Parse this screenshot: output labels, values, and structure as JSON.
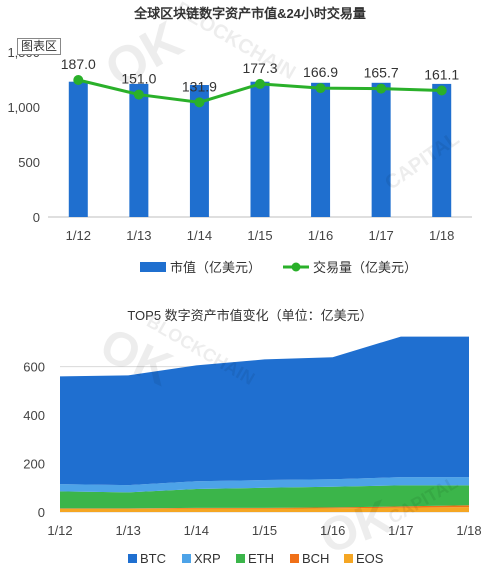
{
  "chart1": {
    "title": "全球区块链数字资产市值&24小时交易量",
    "tag": "图表区",
    "legend": {
      "bar": "市值（亿美元）",
      "line": "交易量（亿美元）"
    },
    "colors": {
      "bar": "#1f6fcf",
      "line": "#2ab02a"
    }
  },
  "chart2": {
    "title": "TOP5 数字资产市值变化（单位：亿美元）",
    "legend": [
      "BTC",
      "XRP",
      "ETH",
      "BCH",
      "EOS"
    ],
    "colors": [
      "#1f6fd0",
      "#4da3e8",
      "#3bb54a",
      "#f07018",
      "#f5a623"
    ]
  },
  "watermark": {
    "ok": "OK",
    "text1": "BLOCKCHAIN",
    "text2": "CAPITAL"
  },
  "chart_data": [
    {
      "type": "bar",
      "title": "全球区块链数字资产市值&24小时交易量",
      "categories": [
        "1/12",
        "1/13",
        "1/14",
        "1/15",
        "1/16",
        "1/17",
        "1/18"
      ],
      "series": [
        {
          "name": "市值（亿美元）",
          "kind": "bar",
          "values": [
            1230,
            1210,
            1200,
            1230,
            1220,
            1220,
            1210
          ]
        },
        {
          "name": "交易量（亿美元）",
          "kind": "line",
          "values": [
            187.0,
            151.0,
            131.9,
            177.3,
            166.9,
            165.7,
            161.1
          ]
        }
      ],
      "yticks": [
        "0",
        "500",
        "1,000",
        "1,500"
      ],
      "ylim": [
        0,
        1500
      ],
      "line_labels": [
        "187.0",
        "151.0",
        "131.9",
        "177.3",
        "166.9",
        "165.7",
        "161.1"
      ],
      "legend_position": "bottom"
    },
    {
      "type": "area",
      "stacked": true,
      "title": "TOP5 数字资产市值变化（单位：亿美元）",
      "categories": [
        "1/12",
        "1/13",
        "1/14",
        "1/15",
        "1/16",
        "1/17",
        "1/18"
      ],
      "series": [
        {
          "name": "EOS",
          "values": [
            13,
            13,
            14,
            14,
            15,
            18,
            20
          ]
        },
        {
          "name": "BCH",
          "values": [
            2,
            2,
            3,
            3,
            4,
            5,
            8
          ]
        },
        {
          "name": "ETH",
          "values": [
            70,
            66,
            78,
            83,
            85,
            87,
            82
          ]
        },
        {
          "name": "XRP",
          "values": [
            30,
            30,
            32,
            32,
            31,
            34,
            34
          ]
        },
        {
          "name": "BTC",
          "values": [
            445,
            453,
            478,
            498,
            504,
            580,
            580
          ]
        }
      ],
      "yticks": [
        "0",
        "200",
        "400",
        "600"
      ],
      "ylim": [
        0,
        710
      ],
      "legend_position": "bottom"
    }
  ]
}
